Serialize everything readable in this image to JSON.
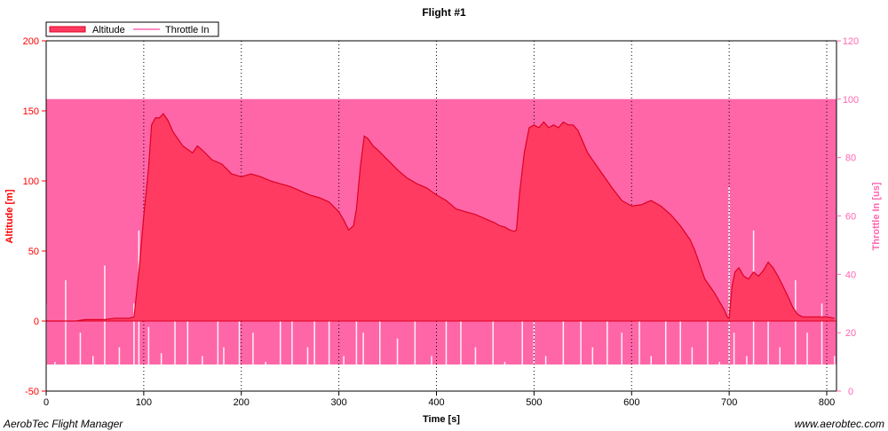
{
  "footer": {
    "left": "AerobTec Flight Manager",
    "right": "www.aerobtec.com"
  },
  "colors": {
    "plot_background": "#ff66a8",
    "altitude_fill": "#ff3b62",
    "altitude_line": "#dd0022",
    "throttle_line": "#ff99cc",
    "left_axis": "#ff0000",
    "right_axis": "#ff66b2",
    "grid": "#000000"
  },
  "chart_data": {
    "type": "area",
    "title": "Flight #1",
    "xlabel": "Time [s]",
    "ylabel_left": "Altitude [m]",
    "ylabel_right": "Throttle In [us]",
    "xlim": [
      0,
      810
    ],
    "ylim_left": [
      -50,
      200
    ],
    "ylim_right": [
      0,
      120
    ],
    "x_ticks": [
      0,
      100,
      200,
      300,
      400,
      500,
      600,
      700,
      800
    ],
    "y_left_ticks": [
      -50,
      0,
      50,
      100,
      150,
      200
    ],
    "y_right_ticks": [
      0,
      20,
      40,
      60,
      80,
      100,
      120
    ],
    "grid": "dotted-vertical",
    "legend_position": "top-left",
    "series": [
      {
        "name": "Altitude",
        "axis": "left",
        "x": [
          0,
          10,
          20,
          30,
          40,
          50,
          60,
          70,
          80,
          85,
          90,
          95,
          100,
          105,
          108,
          112,
          116,
          120,
          125,
          130,
          140,
          150,
          155,
          160,
          170,
          180,
          190,
          200,
          210,
          220,
          230,
          240,
          250,
          260,
          270,
          280,
          290,
          300,
          305,
          310,
          315,
          318,
          322,
          326,
          330,
          335,
          340,
          350,
          360,
          370,
          380,
          390,
          400,
          410,
          420,
          430,
          440,
          450,
          460,
          465,
          470,
          475,
          480,
          482,
          485,
          490,
          495,
          500,
          505,
          510,
          515,
          520,
          525,
          530,
          535,
          540,
          545,
          550,
          555,
          560,
          570,
          580,
          590,
          600,
          610,
          620,
          630,
          640,
          650,
          660,
          665,
          670,
          675,
          680,
          685,
          690,
          695,
          698,
          700,
          703,
          706,
          710,
          715,
          720,
          725,
          730,
          735,
          740,
          745,
          750,
          755,
          760,
          765,
          770,
          775,
          780,
          790,
          800,
          808
        ],
        "y": [
          0,
          0,
          0,
          0,
          1,
          1,
          1,
          2,
          2,
          2,
          3,
          35,
          75,
          110,
          140,
          145,
          145,
          148,
          143,
          135,
          125,
          120,
          125,
          122,
          115,
          112,
          105,
          103,
          105,
          103,
          100,
          98,
          96,
          93,
          90,
          88,
          85,
          78,
          72,
          65,
          68,
          80,
          110,
          132,
          130,
          125,
          122,
          115,
          108,
          102,
          98,
          95,
          90,
          86,
          80,
          78,
          76,
          73,
          70,
          68,
          67,
          65,
          64,
          65,
          90,
          120,
          138,
          140,
          138,
          142,
          138,
          140,
          138,
          142,
          140,
          140,
          136,
          128,
          120,
          115,
          105,
          95,
          86,
          82,
          83,
          86,
          82,
          76,
          68,
          58,
          50,
          40,
          30,
          25,
          20,
          14,
          8,
          3,
          2,
          25,
          35,
          38,
          32,
          30,
          35,
          32,
          36,
          42,
          38,
          32,
          25,
          18,
          10,
          5,
          3,
          3,
          3,
          3,
          2
        ]
      },
      {
        "name": "Throttle In",
        "axis": "right",
        "base_level": 100,
        "x": [
          0,
          9,
          20,
          35,
          48,
          60,
          75,
          90,
          95,
          105,
          118,
          132,
          145,
          160,
          176,
          182,
          198,
          212,
          225,
          240,
          252,
          268,
          275,
          290,
          305,
          318,
          325,
          342,
          360,
          378,
          395,
          410,
          425,
          440,
          458,
          470,
          488,
          500,
          512,
          530,
          548,
          560,
          575,
          590,
          608,
          620,
          635,
          650,
          662,
          678,
          690,
          700,
          705,
          718,
          725,
          740,
          752,
          768,
          780,
          795,
          808
        ],
        "y": [
          30,
          10,
          38,
          20,
          12,
          43,
          15,
          30,
          55,
          22,
          13,
          45,
          35,
          12,
          36,
          15,
          62,
          20,
          10,
          55,
          40,
          15,
          50,
          28,
          12,
          45,
          20,
          60,
          18,
          42,
          12,
          50,
          25,
          15,
          38,
          10,
          42,
          33,
          12,
          48,
          25,
          15,
          40,
          20,
          55,
          12,
          45,
          30,
          15,
          35,
          10,
          70,
          20,
          12,
          55,
          28,
          15,
          38,
          20,
          30,
          12
        ]
      }
    ]
  }
}
